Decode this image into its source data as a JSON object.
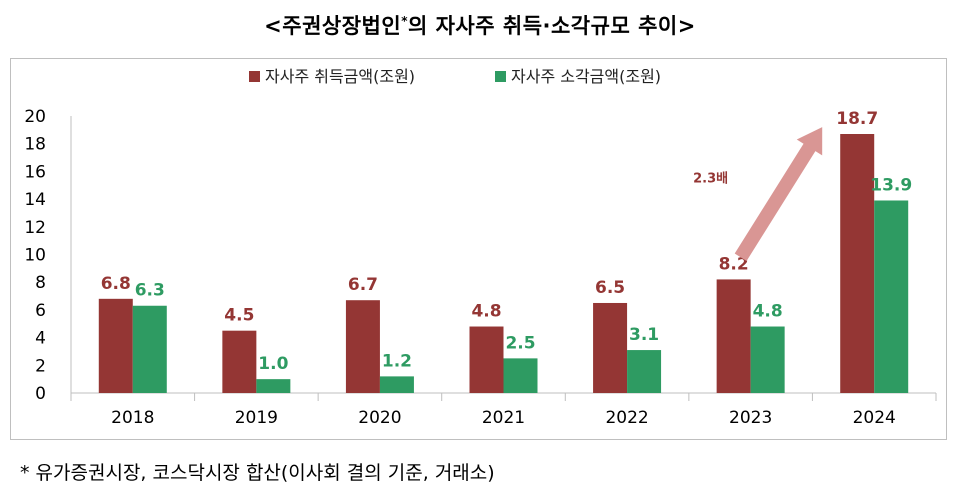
{
  "title_main": "<주권상장법인",
  "title_mark": "*",
  "title_rest": "의 자사주 취득·소각규모 추이>",
  "footnote": "* 유가증권시장, 코스닥시장 합산(이사회 결의 기준, 거래소)",
  "colors": {
    "acquisition": "#943634",
    "retirement": "#2e9b62",
    "arrow": "#d99694"
  },
  "chart_data": {
    "type": "bar",
    "categories": [
      "2018",
      "2019",
      "2020",
      "2021",
      "2022",
      "2023",
      "2024"
    ],
    "series": [
      {
        "name": "자사주 취득금액(조원)",
        "values": [
          6.8,
          4.5,
          6.7,
          4.8,
          6.5,
          8.2,
          18.7
        ],
        "labels": [
          "6.8",
          "4.5",
          "6.7",
          "4.8",
          "6.5",
          "8.2",
          "18.7"
        ]
      },
      {
        "name": "자사주 소각금액(조원)",
        "values": [
          6.3,
          1.0,
          1.2,
          2.5,
          3.1,
          4.8,
          13.9
        ],
        "labels": [
          "6.3",
          "1.0",
          "1.2",
          "2.5",
          "3.1",
          "4.8",
          "13.9"
        ]
      }
    ],
    "yticks": [
      "0",
      "2",
      "4",
      "6",
      "8",
      "10",
      "12",
      "14",
      "16",
      "18",
      "20"
    ],
    "ylim": [
      0,
      20
    ],
    "legend_position": "top-center",
    "grid": false,
    "annotation": {
      "text": "2.3배",
      "from": "2023",
      "to": "2024"
    }
  }
}
